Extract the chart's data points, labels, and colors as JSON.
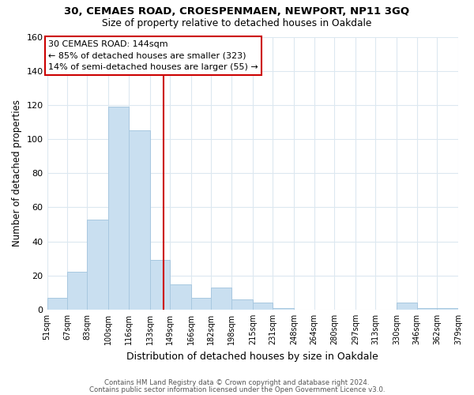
{
  "title1": "30, CEMAES ROAD, CROESPENMAEN, NEWPORT, NP11 3GQ",
  "title2": "Size of property relative to detached houses in Oakdale",
  "xlabel": "Distribution of detached houses by size in Oakdale",
  "ylabel": "Number of detached properties",
  "bar_color": "#c9dff0",
  "bar_edge_color": "#a8c8e0",
  "bin_edges": [
    51,
    67,
    83,
    100,
    116,
    133,
    149,
    166,
    182,
    198,
    215,
    231,
    248,
    264,
    280,
    297,
    313,
    330,
    346,
    362,
    379
  ],
  "bar_heights": [
    7,
    22,
    53,
    119,
    105,
    29,
    15,
    7,
    13,
    6,
    4,
    1,
    0,
    0,
    0,
    0,
    0,
    4,
    1,
    1
  ],
  "vline_x": 144,
  "vline_color": "#cc0000",
  "ylim": [
    0,
    160
  ],
  "yticks": [
    0,
    20,
    40,
    60,
    80,
    100,
    120,
    140,
    160
  ],
  "annotation_line1": "30 CEMAES ROAD: 144sqm",
  "annotation_line2": "← 85% of detached houses are smaller (323)",
  "annotation_line3": "14% of semi-detached houses are larger (55) →",
  "footer1": "Contains HM Land Registry data © Crown copyright and database right 2024.",
  "footer2": "Contains public sector information licensed under the Open Government Licence v3.0.",
  "bg_color": "#ffffff",
  "grid_color": "#dce8f0",
  "tick_labels": [
    "51sqm",
    "67sqm",
    "83sqm",
    "100sqm",
    "116sqm",
    "133sqm",
    "149sqm",
    "166sqm",
    "182sqm",
    "198sqm",
    "215sqm",
    "231sqm",
    "248sqm",
    "264sqm",
    "280sqm",
    "297sqm",
    "313sqm",
    "330sqm",
    "346sqm",
    "362sqm",
    "379sqm"
  ]
}
